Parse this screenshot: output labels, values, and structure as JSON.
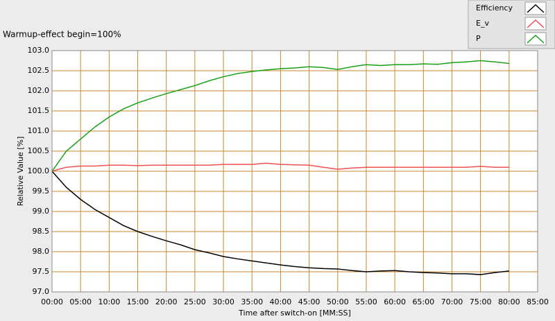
{
  "chart_data": {
    "type": "line",
    "title": "Warmup-effect begin=100%",
    "x_label": "Time after switch-on [MM:SS]",
    "y_label": "Relative Value [%]",
    "x": [
      0,
      2.5,
      5,
      7.5,
      10,
      12.5,
      15,
      17.5,
      20,
      22.5,
      25,
      27.5,
      30,
      32.5,
      35,
      37.5,
      40,
      42.5,
      45,
      47.5,
      50,
      52.5,
      55,
      57.5,
      60,
      62.5,
      65,
      67.5,
      70,
      72.5,
      75,
      77.5,
      80
    ],
    "series": [
      {
        "name": "Efficiency",
        "color": "#000000",
        "values": [
          100.0,
          99.6,
          99.3,
          99.05,
          98.85,
          98.65,
          98.5,
          98.38,
          98.27,
          98.17,
          98.05,
          97.97,
          97.88,
          97.82,
          97.77,
          97.72,
          97.67,
          97.63,
          97.6,
          97.58,
          97.57,
          97.53,
          97.5,
          97.52,
          97.53,
          97.5,
          97.48,
          97.47,
          97.45,
          97.45,
          97.43,
          97.48,
          97.52
        ]
      },
      {
        "name": "E_v",
        "color": "#f05050",
        "values": [
          100.0,
          100.1,
          100.13,
          100.13,
          100.15,
          100.15,
          100.14,
          100.15,
          100.15,
          100.15,
          100.15,
          100.15,
          100.17,
          100.17,
          100.17,
          100.2,
          100.17,
          100.16,
          100.15,
          100.1,
          100.05,
          100.08,
          100.1,
          100.1,
          100.1,
          100.1,
          100.1,
          100.1,
          100.1,
          100.1,
          100.12,
          100.1,
          100.1
        ]
      },
      {
        "name": "P",
        "color": "#16a016",
        "values": [
          100.0,
          100.5,
          100.8,
          101.1,
          101.35,
          101.55,
          101.7,
          101.82,
          101.93,
          102.03,
          102.13,
          102.25,
          102.35,
          102.43,
          102.48,
          102.52,
          102.55,
          102.57,
          102.6,
          102.58,
          102.53,
          102.6,
          102.65,
          102.63,
          102.65,
          102.65,
          102.67,
          102.66,
          102.7,
          102.72,
          102.75,
          102.72,
          102.68
        ]
      }
    ],
    "xlim": [
      0,
      85
    ],
    "xticks": [
      {
        "value": 0,
        "label": "00:00"
      },
      {
        "value": 5,
        "label": "05:00"
      },
      {
        "value": 10,
        "label": "10:00"
      },
      {
        "value": 15,
        "label": "15:00"
      },
      {
        "value": 20,
        "label": "20:00"
      },
      {
        "value": 25,
        "label": "25:00"
      },
      {
        "value": 30,
        "label": "30:00"
      },
      {
        "value": 35,
        "label": "35:00"
      },
      {
        "value": 40,
        "label": "40:00"
      },
      {
        "value": 45,
        "label": "45:00"
      },
      {
        "value": 50,
        "label": "50:00"
      },
      {
        "value": 55,
        "label": "55:00"
      },
      {
        "value": 60,
        "label": "60:00"
      },
      {
        "value": 65,
        "label": "65:00"
      },
      {
        "value": 70,
        "label": "70:00"
      },
      {
        "value": 75,
        "label": "75:00"
      },
      {
        "value": 80,
        "label": "80:00"
      },
      {
        "value": 85,
        "label": "85:00"
      }
    ],
    "ylim": [
      97,
      103
    ],
    "yticks": [
      {
        "value": 97,
        "label": "97.0"
      },
      97.5,
      {
        "value": 98,
        "label": "98.0"
      },
      98.5,
      {
        "value": 99,
        "label": "99.0"
      },
      99.5,
      {
        "value": 100,
        "label": "100.0"
      },
      100.5,
      {
        "value": 101,
        "label": "101.0"
      },
      101.5,
      {
        "value": 102,
        "label": "102.0"
      },
      102.5,
      {
        "value": 103,
        "label": "103.0"
      }
    ],
    "grid": true,
    "grid_color": "#c8882e",
    "legend": "top-right"
  }
}
